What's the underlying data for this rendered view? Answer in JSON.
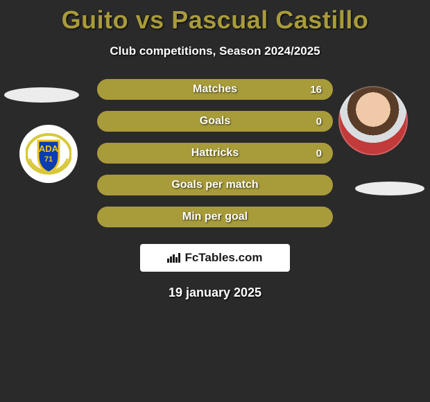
{
  "title": "Guito vs Pascual Castillo",
  "subtitle": "Club competitions, Season 2024/2025",
  "stats": [
    {
      "label": "Matches",
      "value_right": "16",
      "fill_pct": 100
    },
    {
      "label": "Goals",
      "value_right": "0",
      "fill_pct": 100
    },
    {
      "label": "Hattricks",
      "value_right": "0",
      "fill_pct": 100
    },
    {
      "label": "Goals per match",
      "value_right": "",
      "fill_pct": 100
    },
    {
      "label": "Min per goal",
      "value_right": "",
      "fill_pct": 100
    }
  ],
  "branding": "FcTables.com",
  "date": "19 january 2025",
  "colors": {
    "accent": "#a89b3a",
    "background": "#2a2a2a",
    "text": "#ffffff",
    "branding_bg": "#ffffff",
    "branding_fg": "#1a1a1a"
  },
  "club_badge": {
    "text_top": "ADA",
    "text_year": "71",
    "shield_fill": "#0a3db3",
    "shield_stroke": "#f3c51e",
    "laurel": "#d8c83a"
  }
}
